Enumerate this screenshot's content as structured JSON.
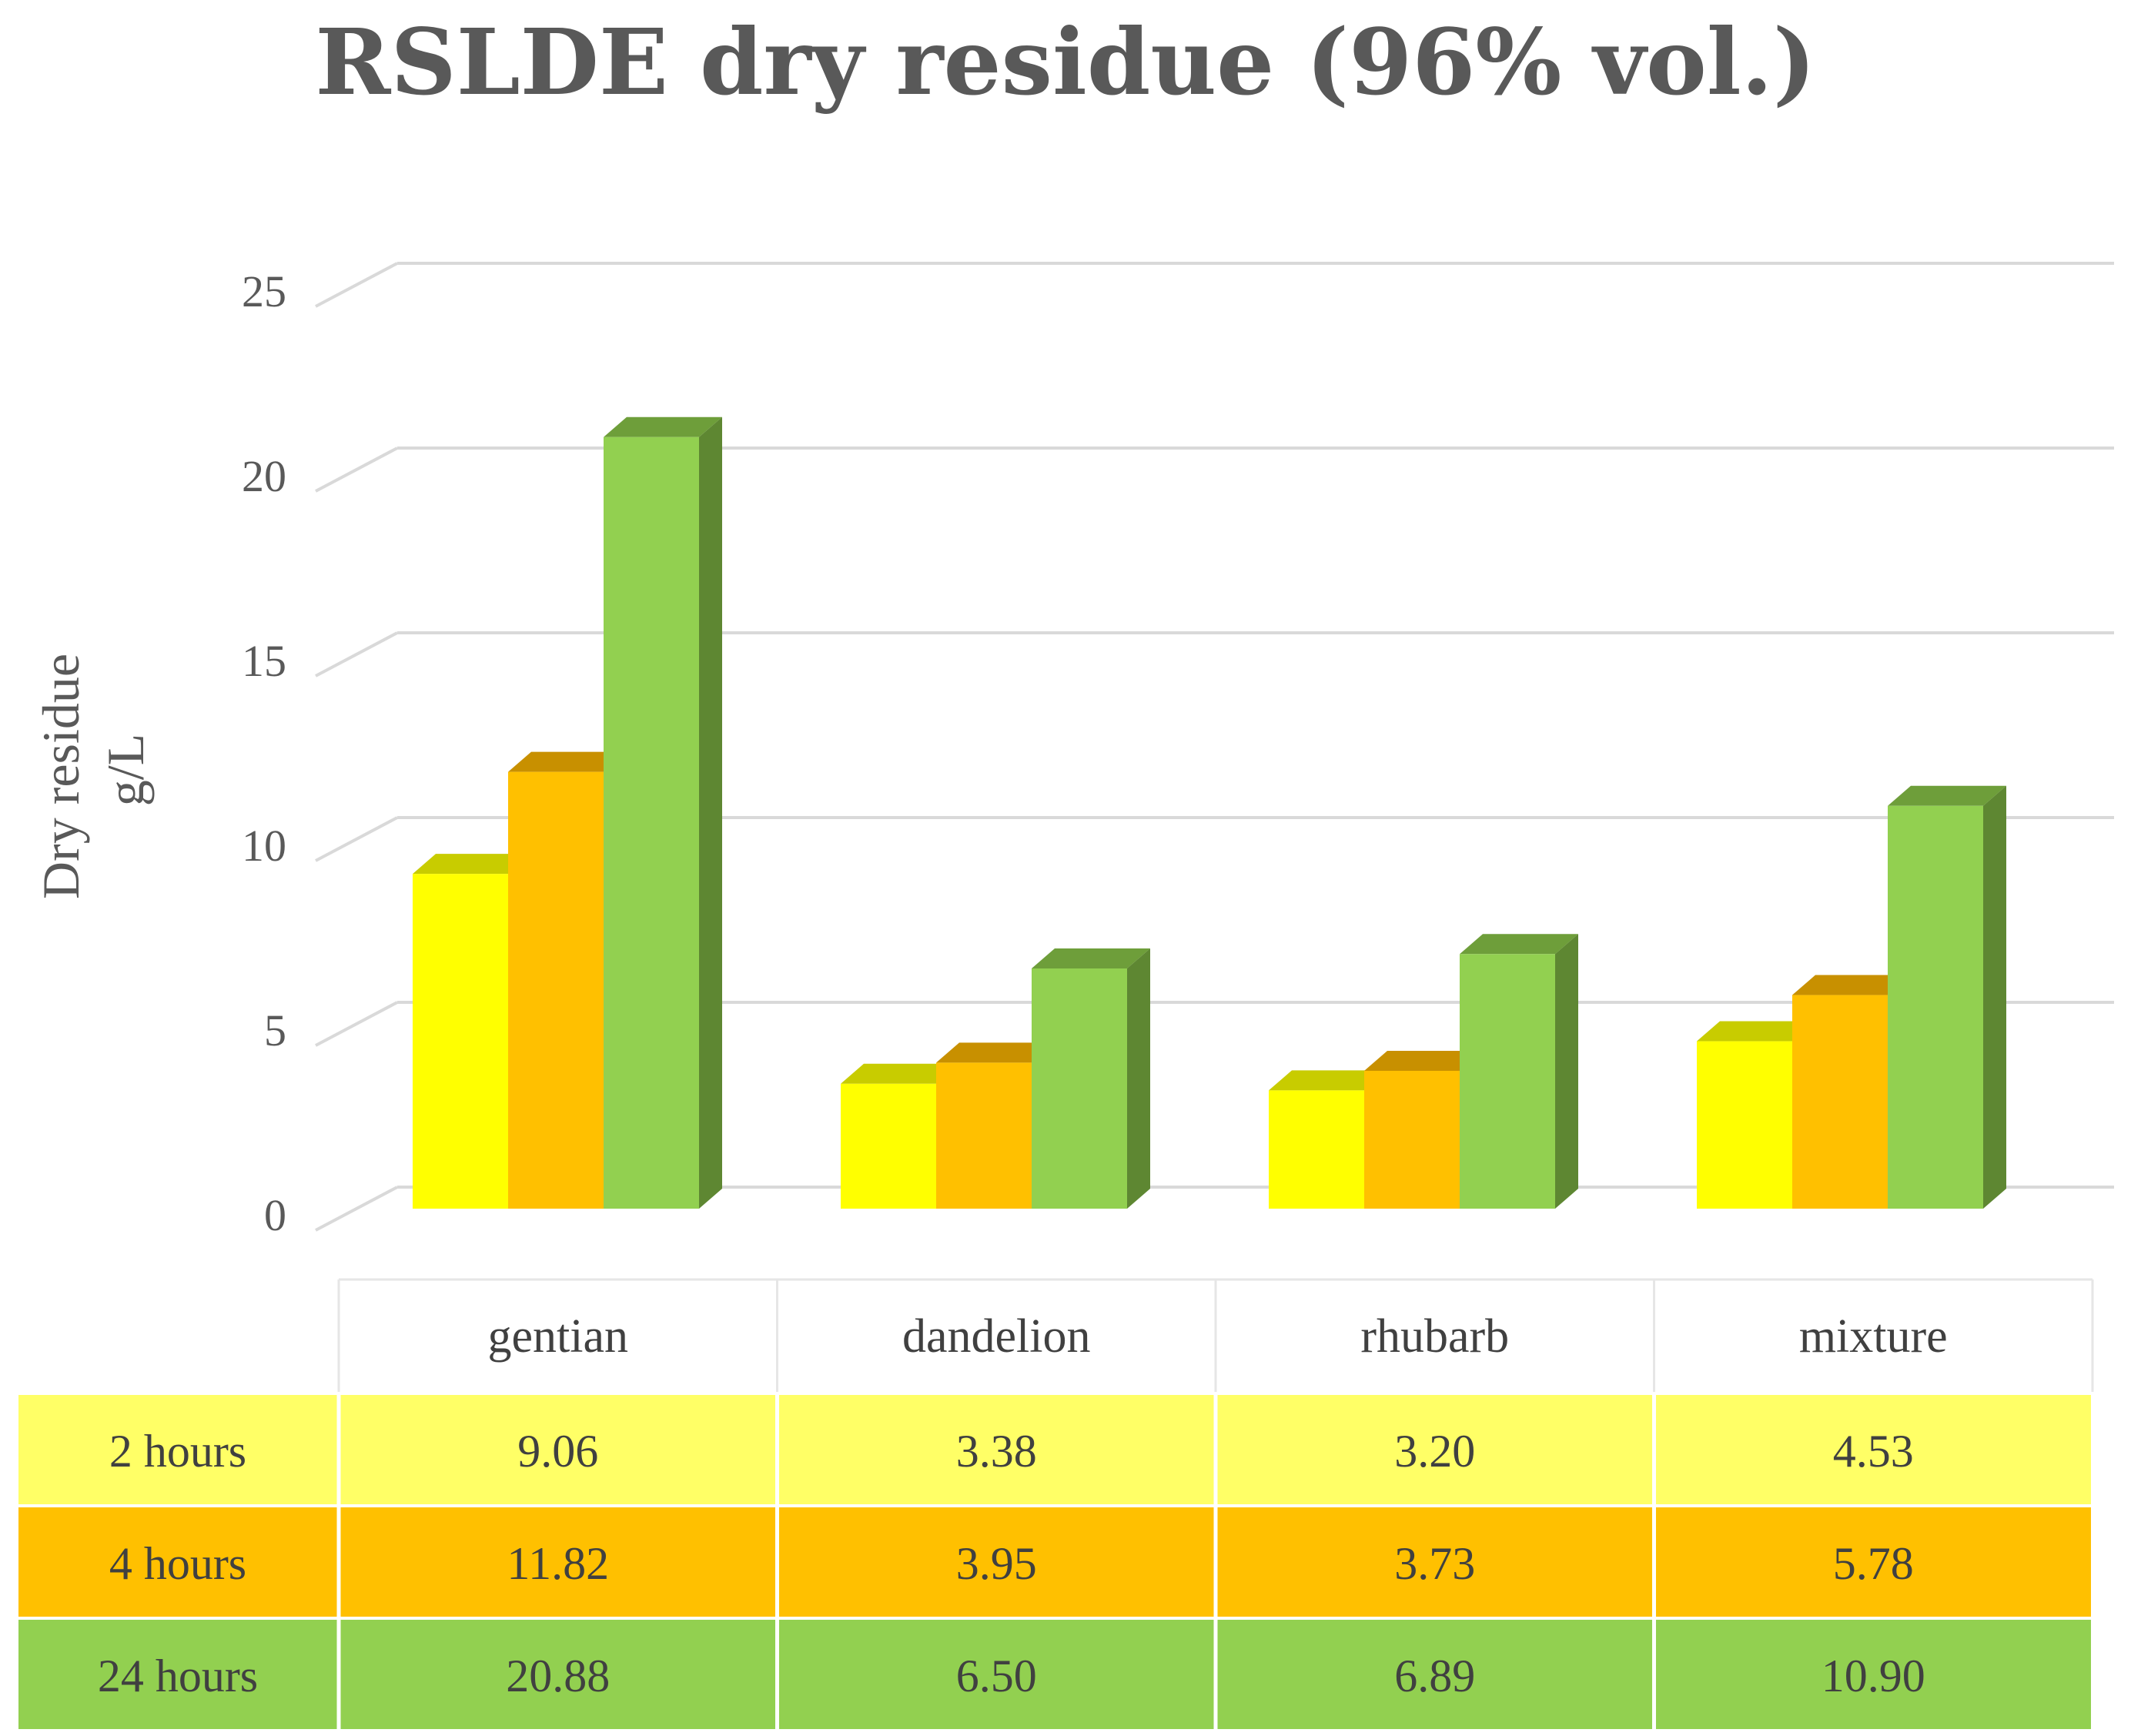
{
  "chart_data": {
    "type": "bar",
    "title": "RSLDE dry residue (96% vol.)",
    "ylabel_line1": "Dry residue",
    "ylabel_line2": "g/L",
    "xlabel": "",
    "ylim": [
      0,
      25
    ],
    "yticks": [
      0,
      5,
      10,
      15,
      20,
      25
    ],
    "categories": [
      "gentian",
      "dandelion",
      "rhubarb",
      "mixture"
    ],
    "series": [
      {
        "name": "2 hours",
        "values": [
          9.06,
          3.38,
          3.2,
          4.53
        ],
        "labels": [
          "9.06",
          "3.38",
          "3.20",
          "4.53"
        ],
        "color": "#FFFF00",
        "top_color": "#C8CC00",
        "side_color": "#B3B300",
        "row_color": "#FFFF66"
      },
      {
        "name": "4 hours",
        "values": [
          11.82,
          3.95,
          3.73,
          5.78
        ],
        "labels": [
          "11.82",
          "3.95",
          "3.73",
          "5.78"
        ],
        "color": "#FFC000",
        "top_color": "#C89000",
        "side_color": "#B38600",
        "row_color": "#FFC000"
      },
      {
        "name": "24 hours",
        "values": [
          20.88,
          6.5,
          6.89,
          10.9
        ],
        "labels": [
          "20.88",
          "6.50",
          "6.89",
          "10.90"
        ],
        "color": "#92D050",
        "top_color": "#6E9E3A",
        "side_color": "#5E8732",
        "row_color": "#92D050"
      }
    ],
    "grid": true,
    "legend": "data-table"
  }
}
